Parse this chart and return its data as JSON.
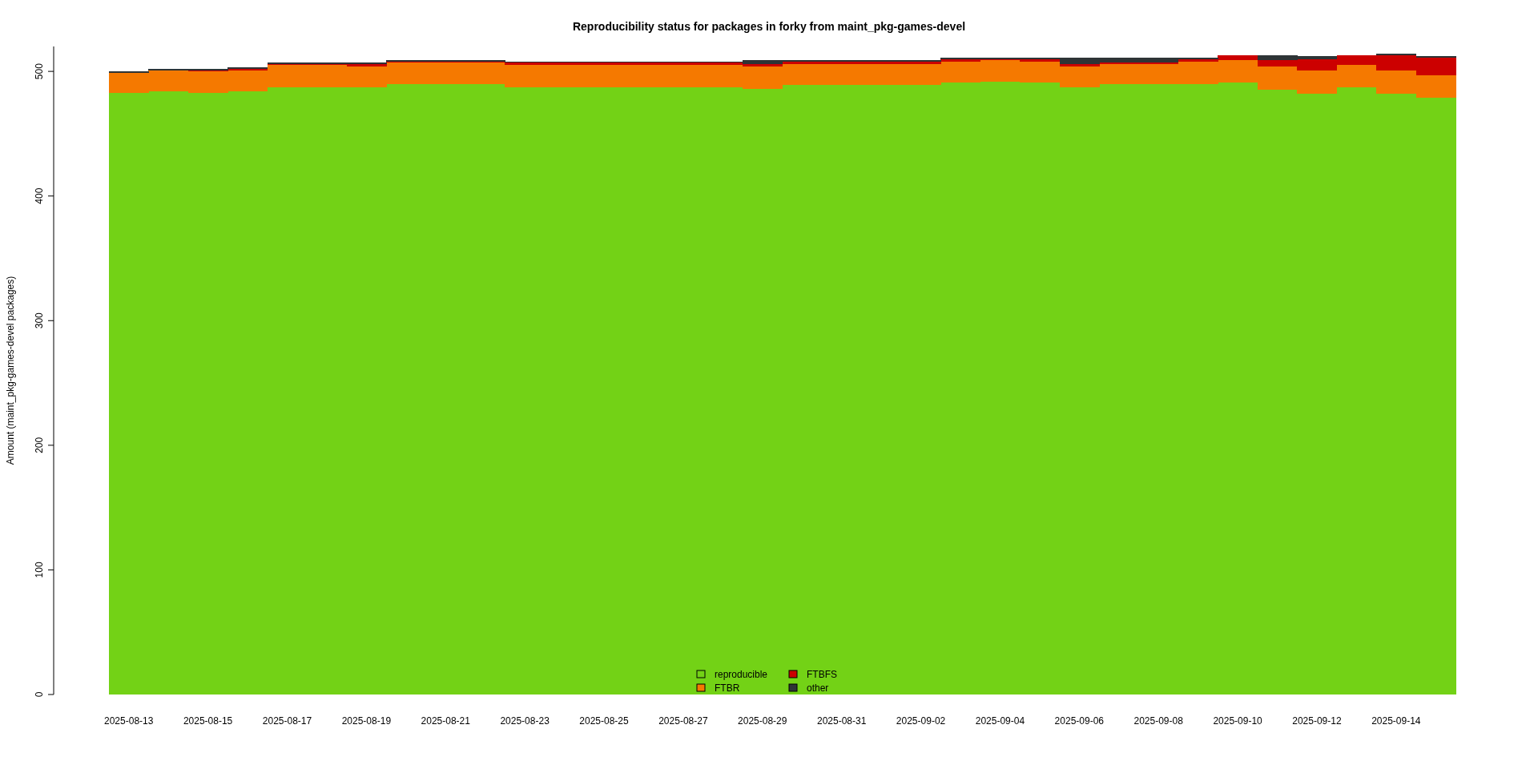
{
  "chart_data": {
    "type": "bar",
    "title": "Reproducibility status for packages in forky from maint_pkg-games-devel",
    "ylabel": "Amount (maint_pkg-games-devel packages)",
    "stacked": true,
    "legend": "bottom",
    "grid": false,
    "categories": [
      "2025-08-13",
      null,
      "2025-08-15",
      null,
      "2025-08-17",
      null,
      "2025-08-19",
      null,
      "2025-08-21",
      null,
      "2025-08-23",
      null,
      "2025-08-25",
      null,
      "2025-08-27",
      null,
      "2025-08-29",
      null,
      "2025-08-31",
      null,
      "2025-09-02",
      null,
      "2025-09-04",
      null,
      "2025-09-06",
      null,
      "2025-09-08",
      null,
      "2025-09-10",
      null,
      "2025-09-12",
      null,
      "2025-09-14",
      null
    ],
    "ylim": [
      0,
      520
    ],
    "yticks": [
      0,
      100,
      200,
      300,
      400,
      500
    ],
    "series": [
      {
        "name": "reproducible",
        "color": "#73d216",
        "values": [
          483,
          484,
          483,
          484,
          487,
          487,
          487,
          490,
          490,
          490,
          487,
          487,
          487,
          487,
          487,
          487,
          486,
          489,
          489,
          489,
          489,
          491,
          492,
          491,
          487,
          490,
          490,
          490,
          491,
          485,
          482,
          487,
          482,
          479
        ]
      },
      {
        "name": "FTBR",
        "color": "#f57900",
        "values": [
          16,
          17,
          17,
          17,
          18,
          18,
          17,
          17,
          17,
          17,
          18,
          18,
          18,
          18,
          18,
          18,
          18,
          17,
          17,
          17,
          17,
          17,
          17,
          17,
          17,
          16,
          16,
          18,
          18,
          19,
          19,
          18,
          19,
          18
        ]
      },
      {
        "name": "FTBFS",
        "color": "#cc0000",
        "values": [
          0,
          0,
          1,
          1,
          1,
          1,
          2,
          1,
          1,
          1,
          2,
          2,
          2,
          2,
          2,
          2,
          2,
          2,
          2,
          2,
          2,
          2,
          1,
          2,
          2,
          1,
          1,
          2,
          4,
          5,
          9,
          8,
          12,
          14
        ]
      },
      {
        "name": "other",
        "color": "#2e3436",
        "values": [
          1,
          1,
          1,
          1,
          1,
          1,
          1,
          1,
          1,
          1,
          1,
          1,
          1,
          1,
          1,
          1,
          3,
          1,
          1,
          1,
          1,
          1,
          1,
          1,
          5,
          4,
          4,
          1,
          0,
          4,
          2,
          0,
          1,
          1
        ]
      }
    ]
  }
}
